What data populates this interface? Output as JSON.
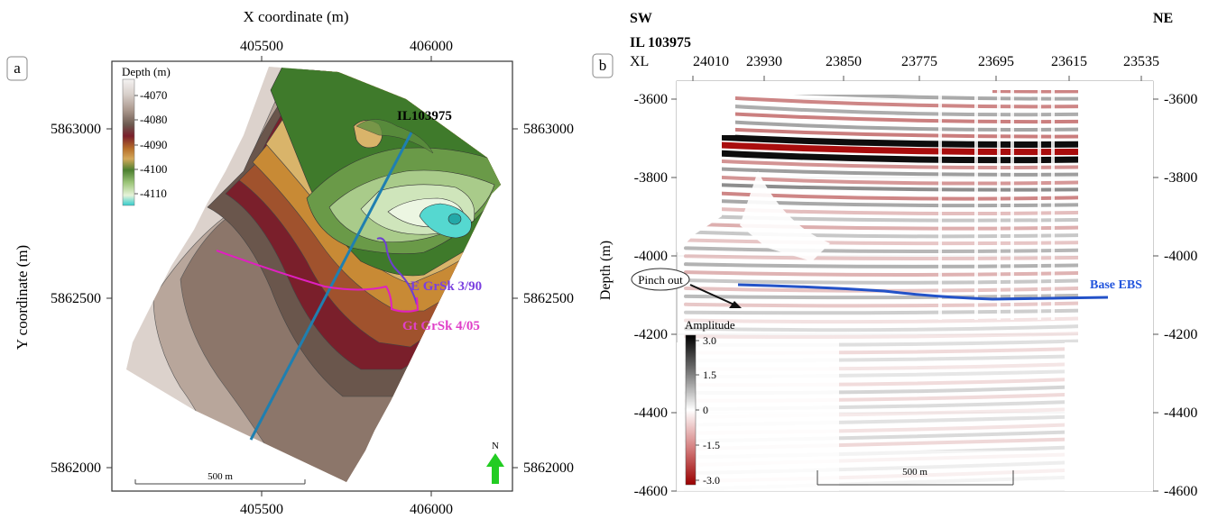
{
  "colors": {
    "ridge": "#e8e3df",
    "trough_green": "#3f7a2b",
    "cyan": "#33cccc",
    "maroon": "#7a1f2b",
    "line_blue": "#1f7fb0",
    "well_violet": "#6d3fd1",
    "well_magenta": "#e020c0",
    "north_arrow": "#22cc22",
    "horizon_blue": "#2352c8",
    "seismic_red": "#a40000",
    "seismic_black": "#000000"
  },
  "panel_a": {
    "label": "a",
    "x_axis_title": "X coordinate (m)",
    "y_axis_title": "Y coordinate (m)",
    "x_ticks": [
      "405500",
      "406000"
    ],
    "y_ticks": [
      "5863000",
      "5862500",
      "5862000"
    ],
    "inline_label": "IL103975",
    "well1": "E GrSk 3/90",
    "well2": "Gt GrSk 4/05",
    "north": "N",
    "scale_bar": "500 m",
    "legend": {
      "title": "Depth (m)",
      "ticks": [
        "-4070",
        "-4080",
        "-4090",
        "-4100",
        "-4110"
      ]
    }
  },
  "panel_b": {
    "label": "b",
    "sw": "SW",
    "ne": "NE",
    "inline": "IL  103975",
    "xl_prefix": "XL",
    "xl_ticks": [
      "24010",
      "23930",
      "23850",
      "23775",
      "23695",
      "23615",
      "23535"
    ],
    "y_axis_title": "Depth (m)",
    "depth_ticks": [
      "-3600",
      "-3800",
      "-4000",
      "-4200",
      "-4400",
      "-4600"
    ],
    "pinch_out": "Pinch out",
    "horizon": "Base EBS",
    "scale_bar": "500 m",
    "colorbar": {
      "title": "Amplitude",
      "ticks": [
        "3.0",
        "1.5",
        "0",
        "-1.5",
        "-3.0"
      ]
    }
  }
}
